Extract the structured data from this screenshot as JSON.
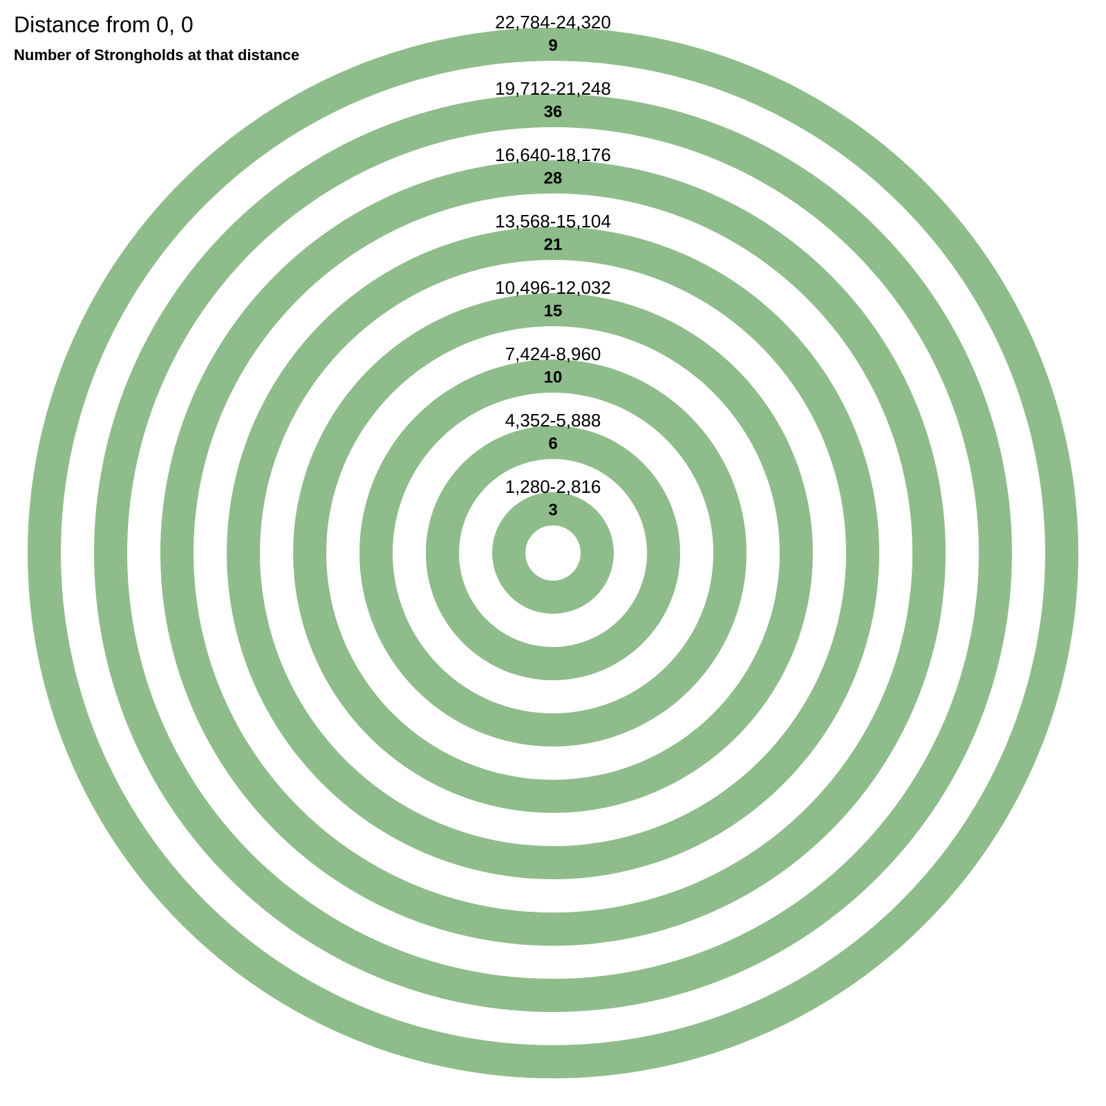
{
  "chart_data": {
    "type": "rings",
    "title": "Distance from 0, 0",
    "subtitle": "Number of Strongholds at that distance",
    "categories": [
      "1,280-2,816",
      "4,352-5,888",
      "7,424-8,960",
      "10,496-12,032",
      "13,568-15,104",
      "16,640-18,176",
      "19,712-21,248",
      "22,784-24,320"
    ],
    "ranges": [
      [
        1280,
        2816
      ],
      [
        4352,
        5888
      ],
      [
        7424,
        8960
      ],
      [
        10496,
        12032
      ],
      [
        13568,
        15104
      ],
      [
        16640,
        18176
      ],
      [
        19712,
        21248
      ],
      [
        22784,
        24320
      ]
    ],
    "values": [
      3,
      6,
      10,
      15,
      21,
      28,
      36,
      9
    ],
    "color": "#8fbc8b"
  }
}
